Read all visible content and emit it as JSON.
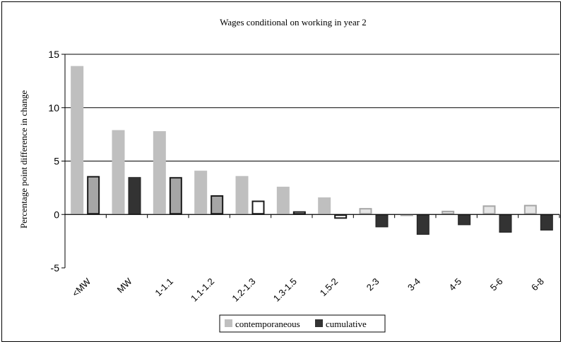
{
  "chart_data": {
    "type": "bar",
    "title": "Wages conditional on working in year 2",
    "xlabel": "",
    "ylabel": "Percentage point difference in change",
    "ylim": [
      -5,
      15
    ],
    "yticks": [
      -5,
      0,
      5,
      10,
      15
    ],
    "grid": "horizontal-major",
    "legend_position": "bottom",
    "categories": [
      "<MW",
      "MW",
      "1-1.1",
      "1.1-1.2",
      "1.2-1.3",
      "1.3-1.5",
      "1.5-2",
      "2-3",
      "3-4",
      "4-5",
      "5-6",
      "6-8"
    ],
    "series": [
      {
        "name": "contemporaneous",
        "color": "#bfbfbf",
        "values": [
          13.9,
          7.9,
          7.8,
          4.1,
          3.6,
          2.6,
          1.6,
          0.6,
          0.05,
          0.35,
          0.85,
          0.9
        ],
        "point_styles": [
          "solid",
          "solid",
          "solid",
          "solid",
          "solid",
          "solid",
          "solid",
          "light",
          "light",
          "light",
          "light",
          "light"
        ]
      },
      {
        "name": "cumulative",
        "color": "#333333",
        "values": [
          3.6,
          3.5,
          3.5,
          1.8,
          1.3,
          0.3,
          -0.4,
          -1.2,
          -1.9,
          -1.0,
          -1.7,
          -1.5
        ],
        "point_styles": [
          "mid",
          "dark",
          "mid",
          "mid",
          "hollow",
          "hollow",
          "hollow",
          "dark",
          "dark",
          "dark",
          "dark",
          "dark"
        ]
      }
    ]
  }
}
